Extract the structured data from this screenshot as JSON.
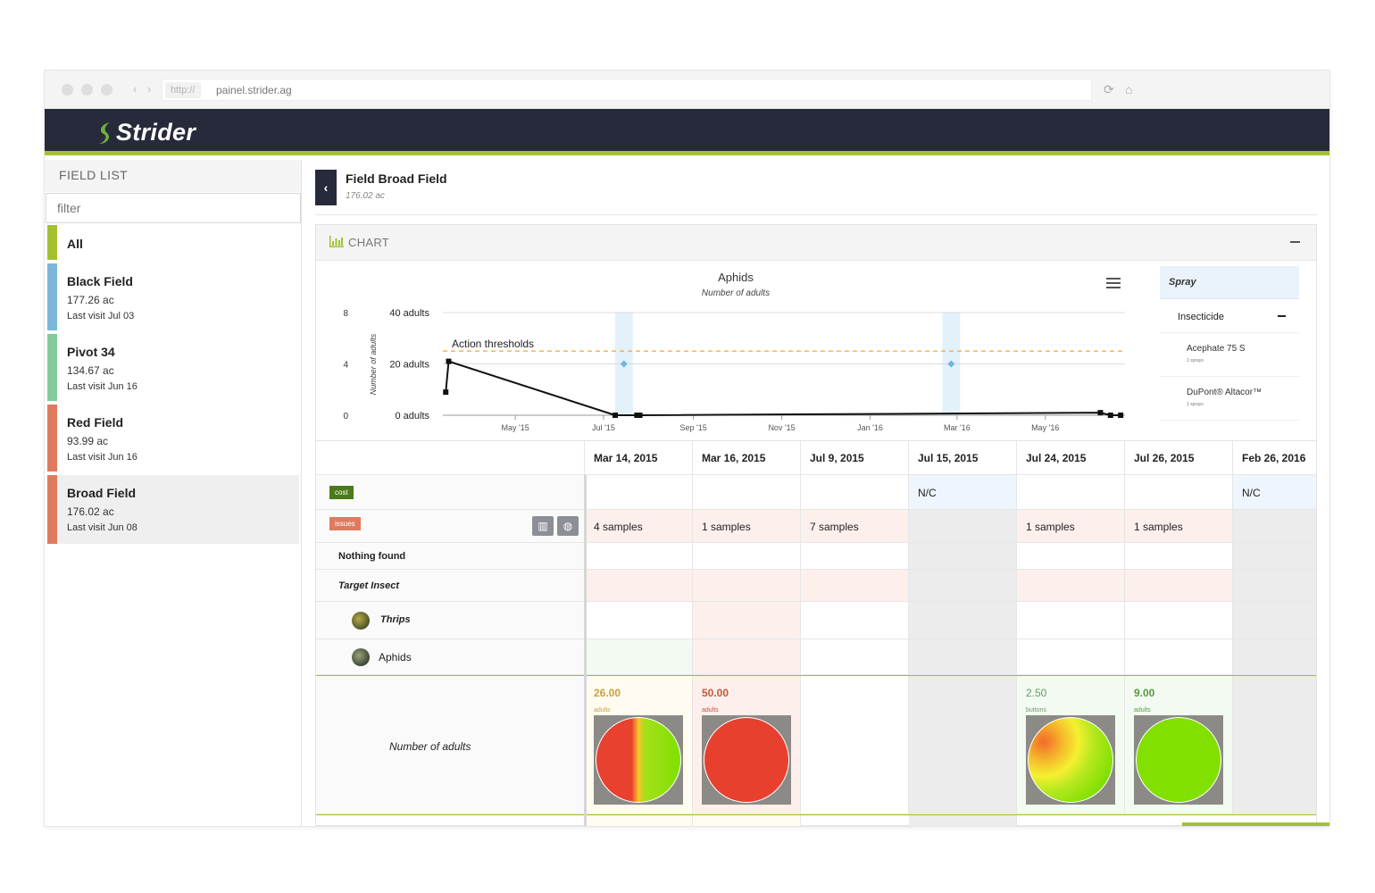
{
  "browser": {
    "url_protocol": "http://",
    "url_host": "painel.strider.ag"
  },
  "app": {
    "brand": "Strider",
    "accent_color": "#a3c12e",
    "header_color": "#272a3a"
  },
  "sidebar": {
    "title": "FIELD LIST",
    "filter_placeholder": "filter",
    "items": [
      {
        "name": "All",
        "color": "#a3c12e"
      },
      {
        "name": "Black Field",
        "area": "177.26 ac",
        "visit": "Last visit Jul 03",
        "color": "#7ab7d9"
      },
      {
        "name": "Pivot 34",
        "area": "134.67 ac",
        "visit": "Last visit Jun 16",
        "color": "#82cc9c"
      },
      {
        "name": "Red Field",
        "area": "93.99 ac",
        "visit": "Last visit Jun 16",
        "color": "#e07a5f"
      },
      {
        "name": "Broad Field",
        "area": "176.02 ac",
        "visit": "Last visit Jun 08",
        "color": "#e07a5f"
      }
    ]
  },
  "main": {
    "title": "Field Broad Field",
    "area": "176.02 ac",
    "panel_title": "CHART"
  },
  "chart_data": {
    "type": "line",
    "title": "Aphids",
    "subtitle": "Number of adults",
    "ylabel": "Number of adults",
    "left_axis_ticks": [
      "8",
      "4",
      "0"
    ],
    "y_ticks": [
      "40 adults",
      "20 adults",
      "0 adults"
    ],
    "x_ticks": [
      "May '15",
      "Jul '15",
      "Sep '15",
      "Nov '15",
      "Jan '16",
      "Mar '16",
      "May '16"
    ],
    "ylim": [
      0,
      40
    ],
    "threshold": {
      "label": "Action thresholds",
      "value": 25,
      "color": "#f0a830"
    },
    "series": [
      {
        "points": [
          {
            "x": "2015-03-14",
            "y": 9
          },
          {
            "x": "2015-03-16",
            "y": 21
          },
          {
            "x": "2015-07-09",
            "y": 0
          },
          {
            "x": "2015-07-24",
            "y": 0
          },
          {
            "x": "2015-07-26",
            "y": 0
          },
          {
            "x": "2016-06-08",
            "y": 1
          },
          {
            "x": "2016-06-15",
            "y": 0
          },
          {
            "x": "2016-06-22",
            "y": 0
          }
        ]
      }
    ],
    "spray_bands": [
      {
        "x": "2015-07-15",
        "marker_y": 20
      },
      {
        "x": "2016-02-26",
        "marker_y": 20
      }
    ]
  },
  "spray_panel": {
    "title": "Spray",
    "section": "Insecticide",
    "items": [
      {
        "name": "Acephate 75 S",
        "count": "1 sprays"
      },
      {
        "name": "DuPont® Altacor™",
        "count": "1 sprays"
      }
    ]
  },
  "grid": {
    "dates": [
      "Mar 14, 2015",
      "Mar 16, 2015",
      "Jul 9, 2015",
      "Jul 15, 2015",
      "Jul 24, 2015",
      "Jul 26, 2015",
      "Feb 26, 2016"
    ],
    "cost_tag": "cost",
    "issues_tag": "issues",
    "cost_row": [
      "",
      "",
      "",
      "N/C",
      "",
      "",
      "N/C"
    ],
    "issues_row": [
      "4 samples",
      "1 samples",
      "7 samples",
      "",
      "1 samples",
      "1 samples",
      ""
    ],
    "nothing_found": "Nothing found",
    "target_insect": "Target Insect",
    "insects": [
      "Thrips",
      "Aphids"
    ],
    "measure_label": "Number of adults",
    "measures": [
      {
        "value": "26.00",
        "unit": "adults",
        "color": "#c9a23a"
      },
      {
        "value": "50.00",
        "unit": "adults",
        "color": "#c0583a"
      },
      {
        "value": "",
        "unit": "",
        "color": ""
      },
      {
        "value": "",
        "unit": "",
        "color": ""
      },
      {
        "value": "2.50",
        "unit": "buttons",
        "color": "#6a9a6a"
      },
      {
        "value": "9.00",
        "unit": "adults",
        "color": "#5a9a3a"
      },
      {
        "value": "",
        "unit": "",
        "color": ""
      }
    ]
  }
}
